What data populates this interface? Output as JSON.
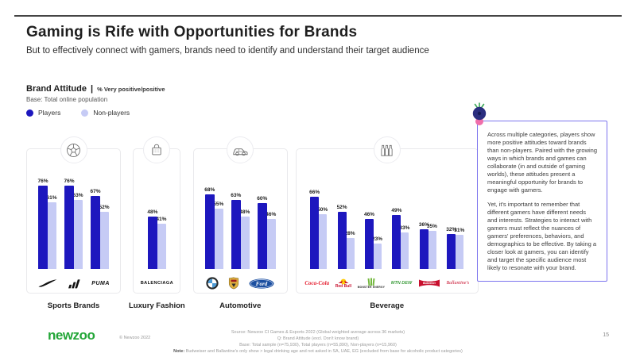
{
  "slide": {
    "title": "Gaming is Rife with Opportunities for Brands",
    "subtitle": "But to effectively connect with gamers, brands need to identify and understand their target audience",
    "page_number": "15"
  },
  "chart_header": {
    "title": "Brand Attitude",
    "separator": "|",
    "metric": "% Very positive/positive",
    "base": "Base: Total online population"
  },
  "legend": {
    "players": "Players",
    "non_players": "Non-players"
  },
  "colors": {
    "players": "#1D17BE",
    "non_players": "#C6CBF5",
    "accent_green": "#23A638",
    "insight_border": "#7C74EE"
  },
  "chart_data": {
    "type": "bar",
    "title": "Brand Attitude | % Very positive/positive",
    "series_names": [
      "Players",
      "Non-players"
    ],
    "ylim": [
      0,
      100
    ],
    "value_suffix": "%",
    "groups": [
      {
        "label": "Sports Brands",
        "icon": "soccer-ball-icon",
        "brands": [
          {
            "name": "Nike",
            "players": 76,
            "non_players": 61
          },
          {
            "name": "Adidas",
            "players": 76,
            "non_players": 63
          },
          {
            "name": "Puma",
            "players": 67,
            "non_players": 52
          }
        ]
      },
      {
        "label": "Luxury Fashion",
        "icon": "shopping-bag-icon",
        "brands": [
          {
            "name": "Balenciaga",
            "players": 48,
            "non_players": 41
          }
        ]
      },
      {
        "label": "Automotive",
        "icon": "car-icon",
        "brands": [
          {
            "name": "BMW",
            "players": 68,
            "non_players": 55
          },
          {
            "name": "Porsche",
            "players": 63,
            "non_players": 48
          },
          {
            "name": "Ford",
            "players": 60,
            "non_players": 46
          }
        ]
      },
      {
        "label": "Beverage",
        "icon": "bottles-icon",
        "brands": [
          {
            "name": "Coca-Cola",
            "players": 66,
            "non_players": 50
          },
          {
            "name": "Red Bull",
            "players": 52,
            "non_players": 28
          },
          {
            "name": "Monster Energy",
            "players": 46,
            "non_players": 23
          },
          {
            "name": "Mountain Dew",
            "players": 49,
            "non_players": 33
          },
          {
            "name": "Budweiser",
            "players": 36,
            "non_players": 35
          },
          {
            "name": "Ballantine's",
            "players": 32,
            "non_players": 31
          }
        ]
      }
    ]
  },
  "insight_box": {
    "paragraph1": "Across multiple categories, players show more positive attitudes toward brands than non-players. Paired with the growing ways in which brands and games can collaborate (in and outside of gaming worlds), these attitudes present a meaningful opportunity for brands to engage with gamers.",
    "paragraph2": "Yet, it's important to remember that different gamers have different needs and interests. Strategies to interact with gamers must reflect the nuances of gamers' preferences, behaviors, and demographics to be effective. By taking a closer look at gamers, you can identify and target the specific audience most likely to resonate with your brand."
  },
  "footer": {
    "logo": "newzoo",
    "copyright": "© Newzoo 2022",
    "source_lines": [
      "Source: Newzoo CI Games & Esports 2022 (Global weighted average across 36 markets)",
      "Q: Brand Attitude (excl. Don't know brand)",
      "Base: Total sample (n=75,930), Total players (n=55,890), Non-players (n=15,960)"
    ],
    "note_label": "Note:",
    "note_text": "Budweiser and Ballantine's only show > legal drinking age and not asked in SA, UAE, EG (excluded from base for alcoholic product categories)"
  }
}
